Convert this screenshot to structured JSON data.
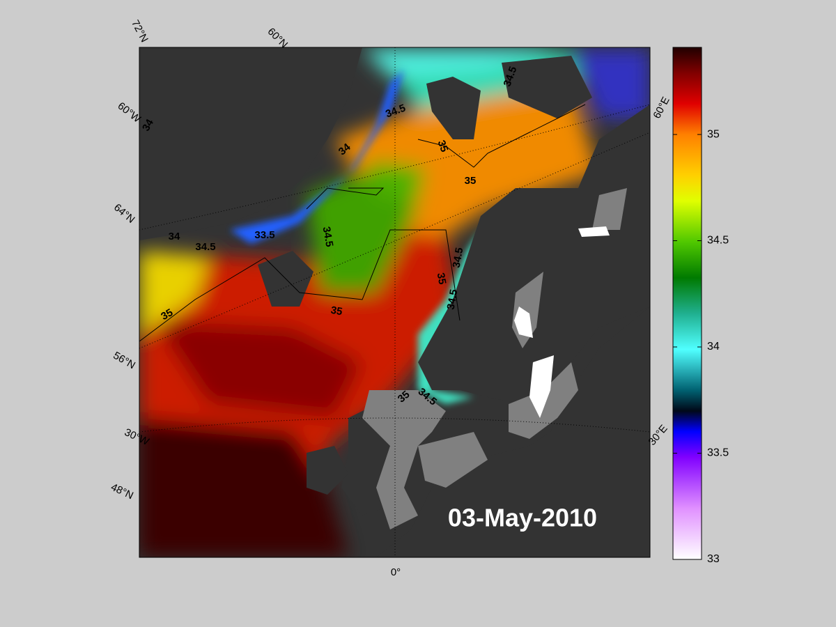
{
  "map": {
    "date": "03-May-2010",
    "graticule_labels": [
      "72°N",
      "60°N",
      "60°W",
      "64°N",
      "56°N",
      "30°W",
      "48°N",
      "0°",
      "60°E",
      "30°E"
    ],
    "contour_labels": [
      "34",
      "34",
      "34.5",
      "35",
      "35",
      "34.5",
      "34",
      "34.5",
      "33.5",
      "34.5",
      "35",
      "35",
      "35",
      "34.5",
      "34.5",
      "35",
      "34.5"
    ]
  },
  "colorbar": {
    "lim": [
      33,
      35.41
    ],
    "ticks": [
      33,
      33.5,
      34,
      34.5,
      35
    ]
  }
}
